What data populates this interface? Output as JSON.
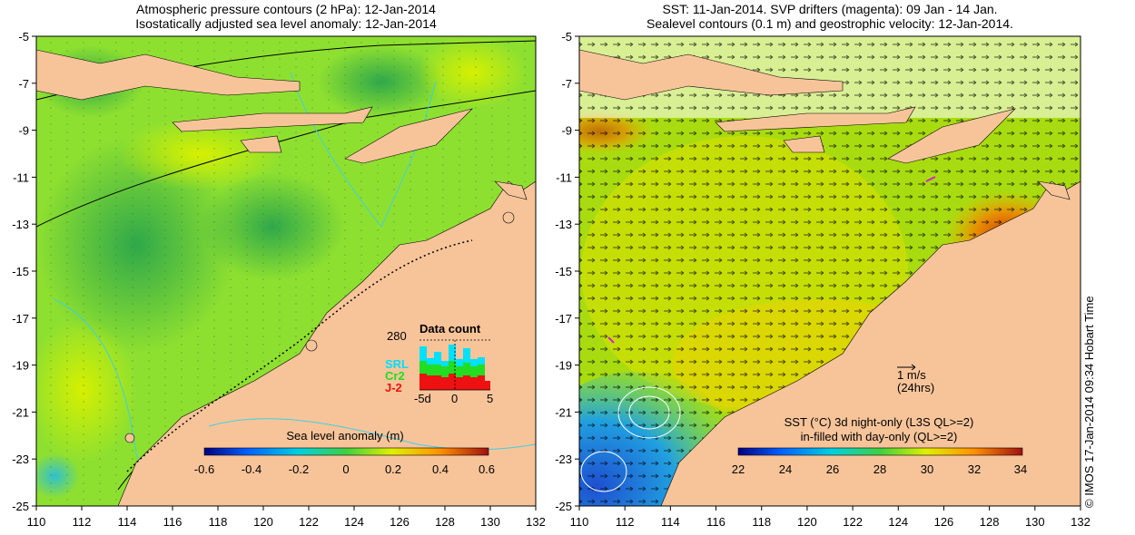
{
  "left_panel": {
    "title_line1": "Atmospheric pressure contours (2 hPa): 12-Jan-2014",
    "title_line2": "Isostatically adjusted sea level anomaly: 12-Jan-2014",
    "colorbar_label": "Sea level anomaly (m)",
    "colorbar_ticks": [
      "-0.6",
      "-0.4",
      "-0.2",
      "0",
      "0.2",
      "0.4",
      "0.6"
    ],
    "inset": {
      "title": "Data count",
      "max_label": "280",
      "legend": [
        {
          "name": "SRL",
          "color": "#00e0ff"
        },
        {
          "name": "Cr2",
          "color": "#22dd22"
        },
        {
          "name": "J-2",
          "color": "#ee1111"
        }
      ],
      "x_labels": [
        "-5d",
        "0",
        "5"
      ]
    }
  },
  "right_panel": {
    "title_line1": "SST: 11-Jan-2014. SVP drifters (magenta): 09 Jan - 14 Jan.",
    "title_line2": "Sealevel contours (0.1 m) and geostrophic velocity: 12-Jan-2014.",
    "scale_arrow_line1": "1 m/s",
    "scale_arrow_line2": "(24hrs)",
    "colorbar_label_line1": "SST (°C) 3d night-only (L3S QL>=2)",
    "colorbar_label_line2": "in-filled with day-only (QL>=2)",
    "colorbar_ticks": [
      "22",
      "24",
      "26",
      "28",
      "30",
      "32",
      "34"
    ]
  },
  "axes": {
    "x_ticks": [
      "110",
      "112",
      "114",
      "116",
      "118",
      "120",
      "122",
      "124",
      "126",
      "128",
      "130",
      "132"
    ],
    "y_ticks": [
      "-5",
      "-7",
      "-9",
      "-11",
      "-13",
      "-15",
      "-17",
      "-19",
      "-21",
      "-23",
      "-25"
    ]
  },
  "copyright": "© IMOS 17-Jan-2014 09:34 Hobart Time",
  "colors": {
    "land": "#f7c49a",
    "sla_green": "#7ed321",
    "sla_dark": "#3cb043",
    "sla_yellow": "#d8f000",
    "sst_green": "#a8e000",
    "sst_yellow": "#f2d400",
    "sst_orange": "#e89a00",
    "sst_blue": "#1e90ff"
  }
}
